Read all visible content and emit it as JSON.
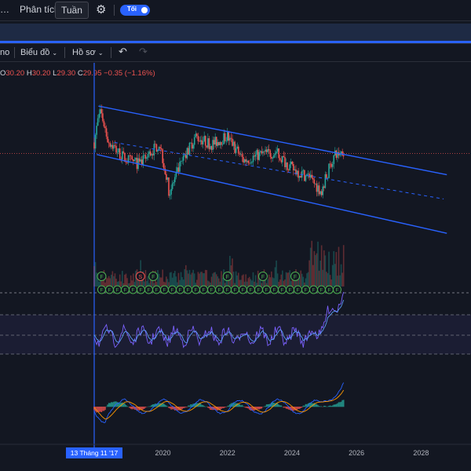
{
  "header": {
    "menu_analysis": "Phân tích",
    "tab_week": "Tuần",
    "toggle_label": "Tối"
  },
  "toolbar": {
    "partial_left": "no",
    "chart_menu": "Biểu đồ",
    "profile_menu": "Hồ sơ"
  },
  "ohlc": {
    "o_label": "O",
    "o_value": "30.20",
    "h_label": "H",
    "h_value": "30.20",
    "l_label": "L",
    "l_value": "29.30",
    "c_label": "C",
    "c_value": "29.95",
    "change": "−0.35 (−1.16%)"
  },
  "date_badge": "13 Tháng 11 '17",
  "colors": {
    "background": "#131722",
    "up": "#26a69a",
    "down": "#ef5350",
    "channel": "#2962ff",
    "accent": "#2962ff",
    "rsi_line": "#7b61ff",
    "rsi_signal": "#5b9cf6",
    "macd_line": "#2962ff",
    "macd_signal": "#ff9800",
    "marker_green": "#4caf50",
    "marker_red": "#ef5350"
  },
  "chart_data": {
    "type": "candlestick",
    "xlim": [
      2017.87,
      2029.5
    ],
    "x_ticks": [
      2020,
      2022,
      2024,
      2026,
      2028
    ],
    "x_tick_labels": [
      "2020",
      "2022",
      "2024",
      "2026",
      "2028"
    ],
    "price_anchors": {
      "x": [
        2017.87,
        2018.05,
        2018.3,
        2018.8,
        2019.3,
        2019.9,
        2020.2,
        2020.5,
        2021.0,
        2021.5,
        2022.0,
        2022.5,
        2023.0,
        2023.5,
        2024.0,
        2024.5,
        2024.9,
        2025.1,
        2025.3,
        2025.6
      ],
      "close": [
        30.5,
        32.2,
        30.6,
        29.7,
        29.4,
        30.5,
        28.0,
        29.2,
        30.8,
        30.4,
        30.8,
        29.6,
        29.9,
        30.0,
        29.2,
        28.8,
        28.1,
        29.0,
        29.8,
        30.1
      ]
    },
    "channel": {
      "upper": [
        [
          2018.0,
          32.3
        ],
        [
          2028.8,
          28.9
        ]
      ],
      "lower": [
        [
          2017.95,
          29.9
        ],
        [
          2028.8,
          26.0
        ]
      ],
      "mid": [
        [
          2018.5,
          30.5
        ],
        [
          2028.7,
          27.7
        ]
      ]
    },
    "horizontal_level": 29.95,
    "last_close": 29.95,
    "events": {
      "upper_row": [
        "F",
        "S",
        "F",
        "F",
        "F",
        "F"
      ],
      "upper_x": [
        2018.1,
        2019.3,
        2019.7,
        2022.0,
        2023.1,
        2024.1
      ],
      "lower_row_label": "F",
      "lower_row_x_start": 2018.1,
      "lower_row_x_end": 2025.6
    },
    "rsi": {
      "guides": [
        "overbought",
        "mid",
        "oversold"
      ]
    },
    "macd": {
      "note": ""
    }
  }
}
